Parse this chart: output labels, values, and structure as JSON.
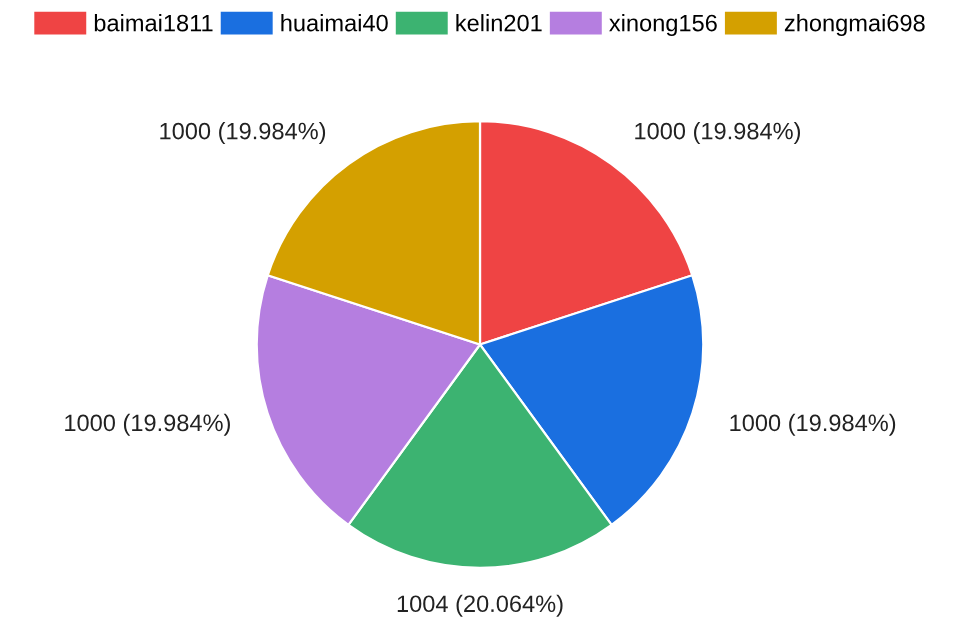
{
  "chart_data": {
    "type": "pie",
    "categories": [
      "baimai1811",
      "huaimai40",
      "kelin201",
      "xinong156",
      "zhongmai698"
    ],
    "values": [
      1000,
      1000,
      1004,
      1000,
      1000
    ],
    "colors": [
      "#ef4444",
      "#1a6fe0",
      "#3cb371",
      "#b57ee0",
      "#d4a000"
    ],
    "value_labels": [
      "1000 (19.984%)",
      "1000 (19.984%)",
      "1004 (20.064%)",
      "1000 (19.984%)",
      "1000 (19.984%)"
    ],
    "legend": "top"
  }
}
